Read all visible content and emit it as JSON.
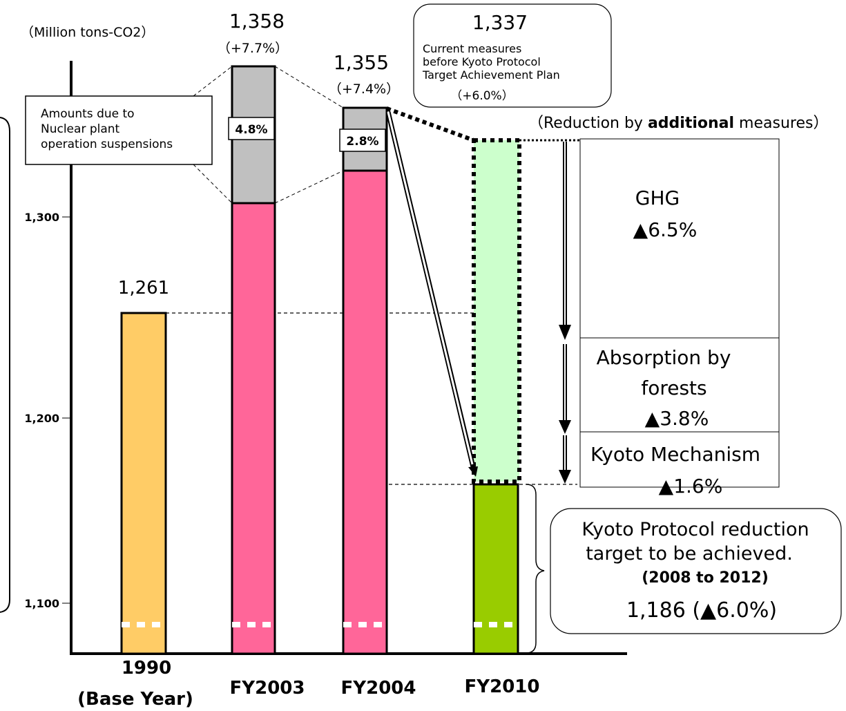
{
  "chart_data": {
    "type": "bar",
    "unit": "（Million tons-CO2）",
    "yticks": [
      "1,100",
      "1,200",
      "1,300"
    ],
    "ytick_values": [
      1100,
      1200,
      1300
    ],
    "categories": [
      "1990",
      "FY2003",
      "FY2004",
      "FY2010"
    ],
    "category_sublabels": [
      "(Base Year)",
      "",
      "",
      ""
    ],
    "bars": [
      {
        "category": "1990",
        "total": 1261,
        "label": "1,261",
        "pct": "",
        "color": "#ffcc66"
      },
      {
        "category": "FY2003",
        "total": 1358,
        "label": "1,358",
        "pct": "（+7.7%）",
        "base": 1307,
        "nuclear": "4.8%",
        "color": "#ff6699"
      },
      {
        "category": "FY2004",
        "total": 1355,
        "label": "1,355",
        "pct": "（+7.4%）",
        "base": 1322,
        "nuclear": "2.8%",
        "color": "#ff6699"
      },
      {
        "category": "FY2010",
        "total": 1337,
        "target": 1186,
        "color": "#99cc00",
        "measures_color": "#ccffcc"
      }
    ],
    "nuclear_callout": [
      "Amounts due to",
      "Nuclear plant",
      "operation suspensions"
    ],
    "current_measures": {
      "value": "1,337",
      "lines": [
        "Current measures",
        "before Kyoto Protocol",
        "Target Achievement Plan"
      ],
      "pct": "（+6.0%）"
    },
    "additional": {
      "prefix": "（Reduction by ",
      "bold": "additional",
      "suffix": " measures）"
    },
    "reductions": [
      {
        "lines": [
          "GHG",
          "▲6.5%"
        ]
      },
      {
        "lines": [
          "Absorption by",
          "forests",
          "▲3.8%"
        ]
      },
      {
        "lines": [
          "Kyoto Mechanism",
          "▲1.6%"
        ]
      }
    ],
    "target_box": {
      "line1": "Kyoto Protocol reduction",
      "line2": "target to be achieved.",
      "period": "(2008 to 2012)",
      "value": "1,186 (▲6.0%)"
    }
  }
}
